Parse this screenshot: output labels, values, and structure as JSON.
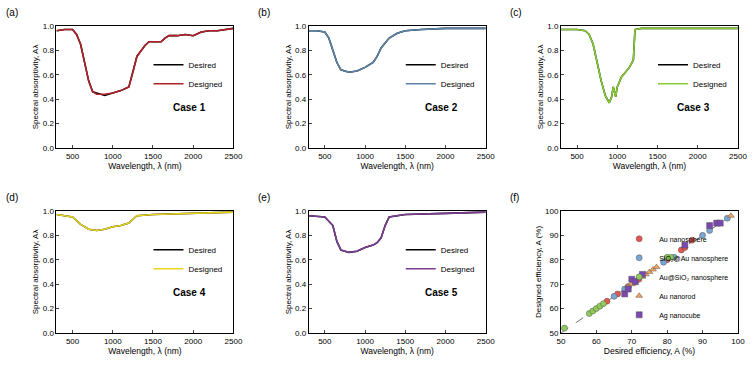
{
  "chart_data": [
    {
      "type": "line",
      "title": "(a)",
      "annotation": "Case 1",
      "x_label": "Wavelength, λ (nm)",
      "y_label": "Spectral absorptivity, Aλ",
      "legend": "right",
      "x": [
        300,
        400,
        500,
        550,
        600,
        650,
        700,
        750,
        800,
        900,
        1000,
        1100,
        1200,
        1250,
        1300,
        1400,
        1450,
        1600,
        1650,
        1700,
        1800,
        1900,
        2000,
        2100,
        2200,
        2300,
        2400,
        2500
      ],
      "series": [
        {
          "name": "Desired",
          "color": "#000000",
          "values": [
            0.96,
            0.97,
            0.97,
            0.93,
            0.85,
            0.7,
            0.55,
            0.46,
            0.45,
            0.43,
            0.45,
            0.47,
            0.5,
            0.62,
            0.75,
            0.84,
            0.87,
            0.87,
            0.9,
            0.92,
            0.92,
            0.93,
            0.92,
            0.95,
            0.96,
            0.96,
            0.97,
            0.98
          ]
        },
        {
          "name": "Designed",
          "color": "#b22028",
          "values": [
            0.96,
            0.97,
            0.97,
            0.93,
            0.85,
            0.7,
            0.55,
            0.46,
            0.44,
            0.44,
            0.45,
            0.47,
            0.5,
            0.62,
            0.75,
            0.84,
            0.87,
            0.87,
            0.9,
            0.92,
            0.92,
            0.93,
            0.92,
            0.95,
            0.96,
            0.96,
            0.97,
            0.98
          ]
        }
      ],
      "xlim": [
        300,
        2500
      ],
      "xticks": [
        500,
        1000,
        1500,
        2000,
        2500
      ],
      "ylim": [
        0,
        1
      ],
      "yticks": [
        {
          "value": 0,
          "label": "0.0"
        },
        0.2,
        0.4,
        0.6,
        0.8,
        {
          "value": 1,
          "label": "1.0"
        }
      ]
    },
    {
      "type": "line",
      "title": "(b)",
      "annotation": "Case 2",
      "x_label": "Wavelength, λ (nm)",
      "y_label": "Spectral absorptivity, Aλ",
      "legend": "right",
      "x": [
        300,
        400,
        500,
        550,
        600,
        650,
        700,
        800,
        900,
        1000,
        1100,
        1150,
        1200,
        1300,
        1400,
        1500,
        1700,
        2000,
        2500
      ],
      "series": [
        {
          "name": "Desired",
          "color": "#000000",
          "values": [
            0.96,
            0.96,
            0.95,
            0.9,
            0.8,
            0.7,
            0.64,
            0.62,
            0.63,
            0.66,
            0.7,
            0.75,
            0.82,
            0.9,
            0.94,
            0.96,
            0.97,
            0.98,
            0.98
          ]
        },
        {
          "name": "Designed",
          "color": "#5b84a8",
          "values": [
            0.96,
            0.96,
            0.95,
            0.9,
            0.8,
            0.7,
            0.64,
            0.62,
            0.63,
            0.66,
            0.7,
            0.75,
            0.82,
            0.9,
            0.94,
            0.96,
            0.97,
            0.98,
            0.98
          ]
        }
      ],
      "xlim": [
        300,
        2500
      ],
      "xticks": [
        500,
        1000,
        1500,
        2000,
        2500
      ],
      "ylim": [
        0,
        1
      ],
      "yticks": [
        {
          "value": 0,
          "label": "0.0"
        },
        0.2,
        0.4,
        0.6,
        0.8,
        {
          "value": 1,
          "label": "1.0"
        }
      ]
    },
    {
      "type": "line",
      "title": "(c)",
      "annotation": "Case 3",
      "x_label": "Wavelength, λ (nm)",
      "y_label": "Spectral absorptivity, Aλ",
      "legend": "right",
      "x": [
        300,
        500,
        600,
        650,
        700,
        750,
        800,
        850,
        900,
        930,
        950,
        980,
        1000,
        1050,
        1100,
        1150,
        1200,
        1220,
        1300,
        2500
      ],
      "series": [
        {
          "name": "Desired",
          "color": "#000000",
          "values": [
            0.97,
            0.97,
            0.96,
            0.93,
            0.85,
            0.7,
            0.55,
            0.43,
            0.37,
            0.42,
            0.5,
            0.42,
            0.5,
            0.58,
            0.62,
            0.66,
            0.72,
            0.97,
            0.98,
            0.98
          ]
        },
        {
          "name": "Designed",
          "color": "#86cc34",
          "values": [
            0.97,
            0.97,
            0.96,
            0.93,
            0.85,
            0.7,
            0.55,
            0.43,
            0.37,
            0.42,
            0.5,
            0.42,
            0.5,
            0.58,
            0.62,
            0.66,
            0.72,
            0.97,
            0.98,
            0.98
          ]
        }
      ],
      "xlim": [
        300,
        2500
      ],
      "xticks": [
        500,
        1000,
        1500,
        2000,
        2500
      ],
      "ylim": [
        0,
        1
      ],
      "yticks": [
        {
          "value": 0,
          "label": "0.0"
        },
        0.2,
        0.4,
        0.6,
        0.8,
        {
          "value": 1,
          "label": "1.0"
        }
      ]
    },
    {
      "type": "line",
      "title": "(d)",
      "annotation": "Case 4",
      "x_label": "Wavelength, λ (nm)",
      "y_label": "Spectral absorptivity, Aλ",
      "legend": "right",
      "x": [
        300,
        500,
        600,
        700,
        800,
        900,
        1000,
        1100,
        1200,
        1250,
        1300,
        1500,
        2000,
        2500
      ],
      "series": [
        {
          "name": "Desired",
          "color": "#000000",
          "values": [
            0.97,
            0.95,
            0.89,
            0.85,
            0.84,
            0.85,
            0.87,
            0.88,
            0.9,
            0.93,
            0.96,
            0.97,
            0.98,
            0.99
          ]
        },
        {
          "name": "Designed",
          "color": "#e6d51c",
          "values": [
            0.97,
            0.95,
            0.89,
            0.85,
            0.84,
            0.85,
            0.87,
            0.88,
            0.9,
            0.93,
            0.96,
            0.97,
            0.98,
            0.99
          ]
        }
      ],
      "xlim": [
        300,
        2500
      ],
      "xticks": [
        500,
        1000,
        1500,
        2000,
        2500
      ],
      "ylim": [
        0,
        1
      ],
      "yticks": [
        {
          "value": 0,
          "label": "0.0"
        },
        0.2,
        0.4,
        0.6,
        0.8,
        {
          "value": 1,
          "label": "1.0"
        }
      ]
    },
    {
      "type": "line",
      "title": "(e)",
      "annotation": "Case 5",
      "x_label": "Wavelength, λ (nm)",
      "y_label": "Spectral absorptivity, Aλ",
      "legend": "right",
      "x": [
        300,
        500,
        600,
        650,
        700,
        800,
        900,
        1000,
        1100,
        1150,
        1200,
        1250,
        1300,
        1500,
        2000,
        2500
      ],
      "series": [
        {
          "name": "Desired",
          "color": "#000000",
          "values": [
            0.96,
            0.95,
            0.88,
            0.75,
            0.68,
            0.66,
            0.67,
            0.7,
            0.72,
            0.74,
            0.78,
            0.88,
            0.95,
            0.97,
            0.98,
            0.99
          ]
        },
        {
          "name": "Designed",
          "color": "#7a3d92",
          "values": [
            0.96,
            0.95,
            0.88,
            0.75,
            0.68,
            0.66,
            0.67,
            0.7,
            0.72,
            0.74,
            0.78,
            0.88,
            0.95,
            0.97,
            0.98,
            0.99
          ]
        }
      ],
      "xlim": [
        300,
        2500
      ],
      "xticks": [
        500,
        1000,
        1500,
        2000,
        2500
      ],
      "ylim": [
        0,
        1
      ],
      "yticks": [
        {
          "value": 0,
          "label": "0.0"
        },
        0.2,
        0.4,
        0.6,
        0.8,
        {
          "value": 1,
          "label": "1.0"
        }
      ]
    },
    {
      "type": "scatter",
      "title": "(f)",
      "x_label": "Desired efficiency, A (%)",
      "y_label": "Designed efficiency, A (%)",
      "legend": "lower right",
      "series": [
        {
          "name": "Au nanosphere",
          "color": "#e8554e",
          "marker": "circle",
          "x": [
            63,
            66,
            69,
            71,
            72,
            80,
            84,
            85,
            87
          ],
          "values": [
            63,
            66,
            69,
            71,
            72,
            80,
            84,
            85,
            88
          ]
        },
        {
          "name": "SiO₂@Au nanosphere",
          "color": "#79a6d2",
          "marker": "circle",
          "x": [
            65,
            68,
            79,
            82,
            90,
            92,
            97
          ],
          "values": [
            65,
            68,
            79,
            81,
            90,
            92,
            97
          ]
        },
        {
          "name": "Au@SiO₂ nanosphere",
          "color": "#8fcc5a",
          "marker": "circle",
          "x": [
            51,
            58,
            59,
            60,
            61,
            62,
            80,
            81
          ],
          "values": [
            52,
            58,
            59,
            60,
            61,
            62,
            81,
            81
          ]
        },
        {
          "name": "Au nanorod",
          "color": "#f4a45a",
          "marker": "triangle",
          "x": [
            69,
            70,
            73,
            74,
            75,
            76,
            77,
            98
          ],
          "values": [
            69,
            70,
            73,
            74,
            75,
            76,
            77,
            98
          ]
        },
        {
          "name": "Ag nanocube",
          "color": "#7a48b0",
          "marker": "square",
          "x": [
            68,
            69,
            70,
            71,
            73,
            85,
            92,
            94,
            95
          ],
          "values": [
            66,
            68,
            72,
            71,
            74,
            86,
            94,
            95,
            95
          ]
        }
      ],
      "xlim": [
        50,
        100
      ],
      "xticks": [
        50,
        60,
        70,
        80,
        90,
        100
      ],
      "ylim": [
        50,
        100
      ],
      "yticks": [
        50,
        60,
        70,
        80,
        90,
        100
      ]
    }
  ]
}
